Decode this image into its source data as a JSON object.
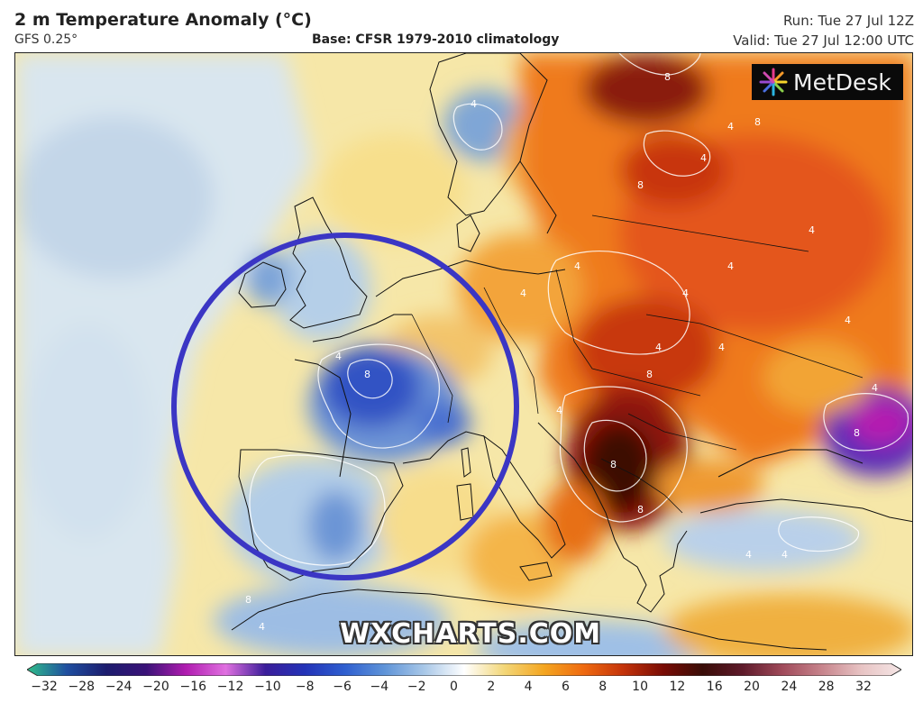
{
  "header": {
    "title": "2 m Temperature Anomaly (°C)",
    "model": "GFS 0.25°",
    "base": "Base: CFSR 1979-2010 climatology",
    "run": "Run: Tue 27 Jul 12Z",
    "valid": "Valid: Tue 27 Jul 12:00 UTC"
  },
  "logo": {
    "text": "MetDesk"
  },
  "watermark": "WXCHARTS.COM",
  "colorbar": {
    "ticks": [
      "−32",
      "−28",
      "−24",
      "−20",
      "−16",
      "−12",
      "−10",
      "−8",
      "−6",
      "−4",
      "−2",
      "0",
      "2",
      "4",
      "6",
      "8",
      "10",
      "12",
      "16",
      "20",
      "24",
      "28",
      "32"
    ],
    "colors": [
      "#2fbf8a",
      "#1f4fa0",
      "#1c1c6e",
      "#3a1278",
      "#b01cb0",
      "#e070e0",
      "#3a1d9a",
      "#2333b8",
      "#2f5fd0",
      "#5f94d8",
      "#a9c8e8",
      "#ffffff",
      "#f3d779",
      "#f4a620",
      "#ef6a10",
      "#c4330a",
      "#7a0c05",
      "#3a0d08",
      "#5e1a2a",
      "#a04a5a",
      "#c7848c",
      "#e8c4c4",
      "#f5e6e6"
    ]
  },
  "map_labels": [
    "4",
    "8",
    "4",
    "8",
    "4",
    "4",
    "8",
    "4",
    "8",
    "4",
    "4",
    "8",
    "8",
    "4",
    "4",
    "4",
    "8",
    "4",
    "4",
    "4",
    "8",
    "4",
    "4",
    "4",
    "4",
    "8"
  ],
  "colors": {
    "highlight_circle": "#3b36c4"
  }
}
